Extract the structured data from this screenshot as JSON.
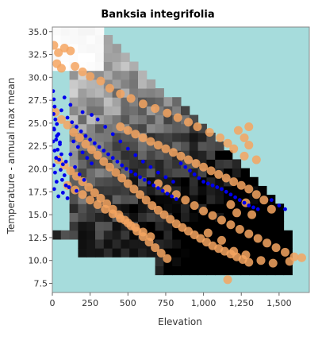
{
  "chart_data": {
    "type": "scatter",
    "title": "Banksia integrifolia",
    "xlabel": "Elevation",
    "ylabel": "Temperature - annual max mean",
    "xlim": [
      0,
      1700
    ],
    "ylim": [
      6.5,
      35.5
    ],
    "x_ticks": [
      0,
      250,
      500,
      750,
      1000,
      1250,
      1500
    ],
    "x_tick_labels": [
      "0",
      "250",
      "500",
      "750",
      "1,000",
      "1,250",
      "1,500"
    ],
    "y_ticks": [
      7.5,
      10.0,
      12.5,
      15.0,
      17.5,
      20.0,
      22.5,
      25.0,
      27.5,
      30.0,
      32.5,
      35.0
    ],
    "y_tick_labels": [
      "7.5",
      "10.0",
      "12.5",
      "15.0",
      "17.5",
      "20.0",
      "22.5",
      "25.0",
      "27.5",
      "30.0",
      "32.5",
      "35.0"
    ],
    "grid": false,
    "background_color": "#a6dcdc",
    "density_grid": {
      "x_bin_width": 56.67,
      "y_bin_width": 0.97,
      "x_start": 0,
      "y_start": 6.5,
      "x_bins": 30,
      "y_bins": 30
    },
    "series": [
      {
        "color": "#f4a460",
        "marker_size_units": 5.5,
        "points": [
          [
            10,
            33.5
          ],
          [
            40,
            32.7
          ],
          [
            80,
            33.2
          ],
          [
            120,
            32.9
          ],
          [
            30,
            31.5
          ],
          [
            60,
            31.0
          ],
          [
            150,
            31.2
          ],
          [
            200,
            30.6
          ],
          [
            250,
            30.1
          ],
          [
            320,
            29.6
          ],
          [
            380,
            28.8
          ],
          [
            450,
            28.2
          ],
          [
            520,
            27.7
          ],
          [
            600,
            27.1
          ],
          [
            680,
            26.6
          ],
          [
            760,
            26.1
          ],
          [
            830,
            25.6
          ],
          [
            900,
            25.1
          ],
          [
            960,
            24.6
          ],
          [
            1040,
            24.0
          ],
          [
            1110,
            23.4
          ],
          [
            1160,
            22.8
          ],
          [
            1200,
            22.2
          ],
          [
            1230,
            24.2
          ],
          [
            1270,
            23.4
          ],
          [
            1300,
            22.6
          ],
          [
            20,
            26.2
          ],
          [
            60,
            25.4
          ],
          [
            100,
            24.8
          ],
          [
            140,
            24.0
          ],
          [
            180,
            23.4
          ],
          [
            220,
            22.7
          ],
          [
            260,
            22.1
          ],
          [
            300,
            21.5
          ],
          [
            340,
            20.8
          ],
          [
            380,
            20.2
          ],
          [
            420,
            19.6
          ],
          [
            460,
            19.0
          ],
          [
            500,
            18.4
          ],
          [
            540,
            17.8
          ],
          [
            580,
            17.2
          ],
          [
            620,
            16.6
          ],
          [
            660,
            16.0
          ],
          [
            700,
            15.5
          ],
          [
            740,
            15.0
          ],
          [
            780,
            14.5
          ],
          [
            820,
            14.0
          ],
          [
            860,
            13.6
          ],
          [
            900,
            13.2
          ],
          [
            940,
            12.8
          ],
          [
            980,
            12.4
          ],
          [
            1020,
            12.0
          ],
          [
            1060,
            11.6
          ],
          [
            1100,
            11.3
          ],
          [
            1140,
            11.0
          ],
          [
            1180,
            10.7
          ],
          [
            1220,
            10.4
          ],
          [
            1260,
            10.1
          ],
          [
            1300,
            9.8
          ],
          [
            40,
            21.0
          ],
          [
            80,
            20.4
          ],
          [
            120,
            19.8
          ],
          [
            160,
            19.2
          ],
          [
            200,
            18.6
          ],
          [
            240,
            18.0
          ],
          [
            280,
            17.4
          ],
          [
            320,
            16.8
          ],
          [
            360,
            16.2
          ],
          [
            400,
            15.6
          ],
          [
            440,
            15.0
          ],
          [
            480,
            14.4
          ],
          [
            520,
            13.8
          ],
          [
            560,
            13.2
          ],
          [
            600,
            12.6
          ],
          [
            640,
            12.0
          ],
          [
            680,
            11.4
          ],
          [
            720,
            10.8
          ],
          [
            760,
            10.2
          ],
          [
            100,
            18.2
          ],
          [
            150,
            17.7
          ],
          [
            200,
            17.2
          ],
          [
            250,
            16.6
          ],
          [
            300,
            16.1
          ],
          [
            350,
            15.6
          ],
          [
            400,
            15.1
          ],
          [
            450,
            14.6
          ],
          [
            500,
            14.1
          ],
          [
            550,
            13.6
          ],
          [
            600,
            13.1
          ],
          [
            650,
            12.6
          ],
          [
            450,
            24.6
          ],
          [
            500,
            24.2
          ],
          [
            550,
            23.8
          ],
          [
            600,
            23.4
          ],
          [
            650,
            23.0
          ],
          [
            700,
            22.6
          ],
          [
            750,
            22.2
          ],
          [
            800,
            21.8
          ],
          [
            850,
            21.4
          ],
          [
            900,
            21.0
          ],
          [
            950,
            20.6
          ],
          [
            1000,
            20.2
          ],
          [
            1050,
            19.8
          ],
          [
            1100,
            19.4
          ],
          [
            1150,
            19.0
          ],
          [
            1200,
            18.6
          ],
          [
            1250,
            18.2
          ],
          [
            1300,
            17.8
          ],
          [
            1350,
            17.2
          ],
          [
            1400,
            16.6
          ],
          [
            700,
            18.4
          ],
          [
            760,
            17.8
          ],
          [
            820,
            17.2
          ],
          [
            880,
            16.6
          ],
          [
            940,
            16.0
          ],
          [
            1000,
            15.4
          ],
          [
            1060,
            14.9
          ],
          [
            1120,
            14.4
          ],
          [
            1180,
            13.9
          ],
          [
            1240,
            13.4
          ],
          [
            1300,
            12.9
          ],
          [
            1360,
            12.4
          ],
          [
            1420,
            11.9
          ],
          [
            1480,
            11.4
          ],
          [
            1540,
            10.9
          ],
          [
            1600,
            10.4
          ],
          [
            1030,
            13.0
          ],
          [
            1120,
            12.2
          ],
          [
            1200,
            11.0
          ],
          [
            1280,
            10.6
          ],
          [
            1380,
            10.0
          ],
          [
            1460,
            9.7
          ],
          [
            1570,
            9.9
          ],
          [
            1650,
            10.3
          ],
          [
            1160,
            7.9
          ],
          [
            1450,
            15.6
          ],
          [
            1220,
            15.2
          ],
          [
            1180,
            16.1
          ],
          [
            1280,
            16.3
          ],
          [
            1320,
            15.0
          ],
          [
            1300,
            24.6
          ],
          [
            1350,
            21.0
          ],
          [
            1270,
            21.4
          ]
        ]
      },
      {
        "color": "#0000ee",
        "marker_size_units": 2.4,
        "points": [
          [
            5,
            28.5
          ],
          [
            10,
            27.6
          ],
          [
            15,
            26.8
          ],
          [
            8,
            26.0
          ],
          [
            20,
            25.4
          ],
          [
            30,
            24.9
          ],
          [
            12,
            24.3
          ],
          [
            40,
            23.8
          ],
          [
            25,
            23.2
          ],
          [
            50,
            22.7
          ],
          [
            35,
            22.1
          ],
          [
            60,
            21.6
          ],
          [
            45,
            21.0
          ],
          [
            70,
            20.5
          ],
          [
            55,
            19.9
          ],
          [
            80,
            19.3
          ],
          [
            65,
            18.8
          ],
          [
            90,
            18.2
          ],
          [
            5,
            23.0
          ],
          [
            15,
            22.0
          ],
          [
            25,
            21.2
          ],
          [
            8,
            20.4
          ],
          [
            18,
            19.6
          ],
          [
            28,
            18.6
          ],
          [
            12,
            17.8
          ],
          [
            10,
            24.4
          ],
          [
            30,
            23.6
          ],
          [
            50,
            22.9
          ],
          [
            100,
            25.6
          ],
          [
            130,
            25.1
          ],
          [
            160,
            24.6
          ],
          [
            190,
            24.1
          ],
          [
            220,
            23.6
          ],
          [
            250,
            23.2
          ],
          [
            280,
            22.8
          ],
          [
            310,
            22.4
          ],
          [
            340,
            22.0
          ],
          [
            370,
            21.6
          ],
          [
            400,
            21.2
          ],
          [
            430,
            20.8
          ],
          [
            460,
            20.4
          ],
          [
            490,
            20.0
          ],
          [
            520,
            19.7
          ],
          [
            550,
            19.4
          ],
          [
            580,
            19.1
          ],
          [
            610,
            18.8
          ],
          [
            640,
            18.5
          ],
          [
            670,
            18.2
          ],
          [
            700,
            17.9
          ],
          [
            730,
            17.6
          ],
          [
            760,
            17.3
          ],
          [
            790,
            17.0
          ],
          [
            820,
            16.7
          ],
          [
            850,
            20.6
          ],
          [
            880,
            20.2
          ],
          [
            910,
            19.8
          ],
          [
            940,
            19.4
          ],
          [
            970,
            19.0
          ],
          [
            1000,
            18.6
          ],
          [
            1030,
            18.4
          ],
          [
            1060,
            18.2
          ],
          [
            1090,
            18.0
          ],
          [
            1120,
            17.8
          ],
          [
            1150,
            17.5
          ],
          [
            1180,
            17.2
          ],
          [
            1210,
            16.9
          ],
          [
            1240,
            16.6
          ],
          [
            1270,
            16.3
          ],
          [
            1300,
            16.0
          ],
          [
            1330,
            15.8
          ],
          [
            1360,
            15.6
          ],
          [
            300,
            25.4
          ],
          [
            350,
            24.6
          ],
          [
            400,
            23.8
          ],
          [
            450,
            23.0
          ],
          [
            500,
            22.2
          ],
          [
            550,
            21.5
          ],
          [
            600,
            20.8
          ],
          [
            650,
            20.2
          ],
          [
            700,
            19.6
          ],
          [
            750,
            19.1
          ],
          [
            800,
            18.6
          ],
          [
            1450,
            16.6
          ],
          [
            1500,
            16.0
          ],
          [
            1540,
            15.6
          ],
          [
            200,
            26.2
          ],
          [
            260,
            25.9
          ],
          [
            120,
            27.0
          ],
          [
            80,
            27.8
          ],
          [
            60,
            26.4
          ],
          [
            140,
            23.0
          ],
          [
            170,
            22.4
          ],
          [
            200,
            21.8
          ],
          [
            230,
            21.2
          ],
          [
            260,
            20.6
          ],
          [
            120,
            21.6
          ],
          [
            90,
            20.8
          ],
          [
            150,
            20.2
          ],
          [
            180,
            19.4
          ],
          [
            210,
            18.8
          ],
          [
            110,
            18.0
          ],
          [
            70,
            17.4
          ],
          [
            40,
            17.0
          ],
          [
            100,
            16.8
          ],
          [
            160,
            17.6
          ]
        ]
      }
    ]
  }
}
